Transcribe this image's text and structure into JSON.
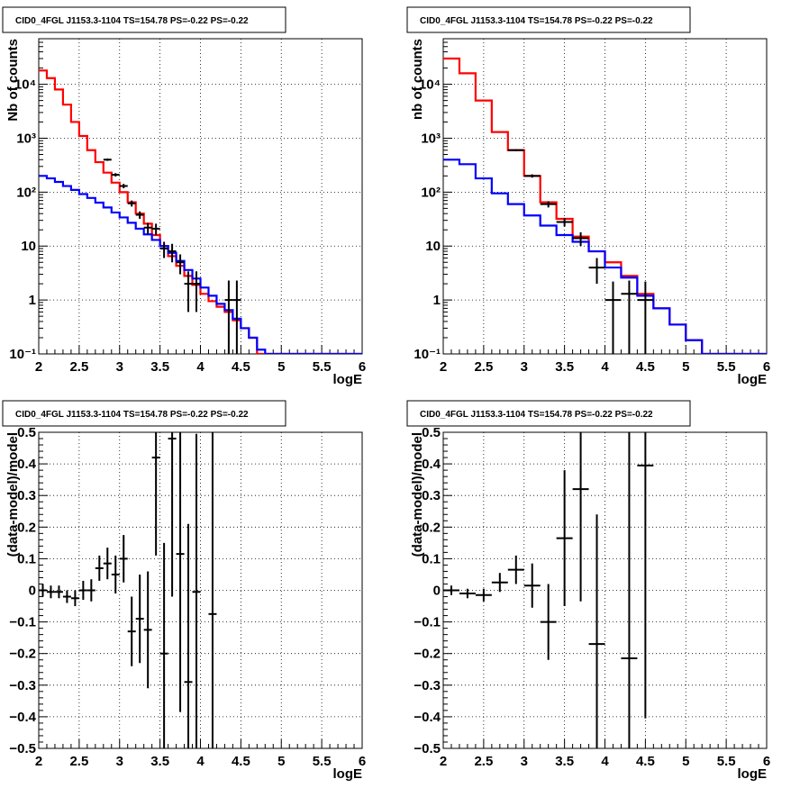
{
  "chart_data": [
    {
      "type": "line",
      "title": "CID0_4FGL J1153.3-1104 TS=154.78 PS=-0.22 PS=-0.22",
      "xlabel": "logE",
      "ylabel": "Nb of counts",
      "xlim": [
        2,
        6
      ],
      "ylim": [
        0.1,
        70000
      ],
      "yscale": "log",
      "grid": true,
      "x_ticks": [
        "2",
        "2.5",
        "3",
        "3.5",
        "4",
        "4.5",
        "5",
        "5.5",
        "6"
      ],
      "y_ticks": [
        "10⁻¹",
        "1",
        "10",
        "10²",
        "10³",
        "10⁴"
      ],
      "bin_edges": [
        2.0,
        2.1,
        2.2,
        2.3,
        2.4,
        2.5,
        2.6,
        2.7,
        2.8,
        2.9,
        3.0,
        3.1,
        3.2,
        3.3,
        3.4,
        3.5,
        3.6,
        3.7,
        3.8,
        3.9,
        4.0,
        4.1,
        4.2,
        4.3,
        4.4,
        4.5,
        4.6,
        4.7,
        4.8,
        4.9,
        5.0,
        5.1,
        5.2,
        5.3,
        5.4,
        5.5,
        5.6,
        5.7,
        5.8,
        5.9,
        6.0
      ],
      "series": [
        {
          "color": "#ff0000",
          "values": [
            18000,
            13000,
            8000,
            4200,
            2000,
            1100,
            600,
            360,
            230,
            150,
            100,
            65,
            40,
            26,
            16,
            10,
            6.5,
            4.3,
            2.8,
            1.9,
            1.3,
            0.95,
            0.75,
            0.6,
            0.42,
            0.3,
            0.2,
            0.1,
            0.1,
            0.1,
            0.1,
            0.1,
            0.1,
            0.1,
            0.1,
            0.1,
            0.1,
            0.1,
            0.1,
            0.1
          ]
        },
        {
          "color": "#0000ff",
          "values": [
            200,
            180,
            155,
            130,
            110,
            92,
            78,
            64,
            52,
            42,
            34,
            27,
            21,
            16.5,
            13,
            10,
            7.5,
            5.3,
            3.6,
            2.5,
            1.7,
            1.2,
            0.85,
            0.65,
            0.45,
            0.3,
            0.2,
            0.12,
            0.1,
            0.1,
            0.1,
            0.1,
            0.1,
            0.1,
            0.1,
            0.1,
            0.1,
            0.1,
            0.1,
            0.1
          ]
        },
        {
          "color": "#000000",
          "points": [
            {
              "x": 2.85,
              "y": 400,
              "err_low": 380,
              "err_high": 420
            },
            {
              "x": 2.95,
              "y": 210,
              "err_low": 195,
              "err_high": 225
            },
            {
              "x": 3.05,
              "y": 130,
              "err_low": 118,
              "err_high": 142
            },
            {
              "x": 3.15,
              "y": 62,
              "err_low": 54,
              "err_high": 70
            },
            {
              "x": 3.25,
              "y": 38,
              "err_low": 32,
              "err_high": 44
            },
            {
              "x": 3.35,
              "y": 22,
              "err_low": 17,
              "err_high": 27
            },
            {
              "x": 3.45,
              "y": 21,
              "err_low": 16,
              "err_high": 26
            },
            {
              "x": 3.55,
              "y": 9,
              "err_low": 6,
              "err_high": 12
            },
            {
              "x": 3.65,
              "y": 8,
              "err_low": 5,
              "err_high": 11
            },
            {
              "x": 3.75,
              "y": 5,
              "err_low": 3,
              "err_high": 7
            },
            {
              "x": 3.85,
              "y": 2,
              "err_low": 0.6,
              "err_high": 3.4
            },
            {
              "x": 3.95,
              "y": 2,
              "err_low": 0.6,
              "err_high": 3.4
            },
            {
              "x": 4.35,
              "y": 1,
              "err_low": 0.1,
              "err_high": 2.3
            },
            {
              "x": 4.45,
              "y": 1,
              "err_low": 0.1,
              "err_high": 2.3
            }
          ]
        }
      ]
    },
    {
      "type": "line",
      "title": "CID0_4FGL J1153.3-1104 TS=154.78 PS=-0.22 PS=-0.22",
      "xlabel": "logE",
      "ylabel": "nb of counts",
      "xlim": [
        2,
        6
      ],
      "ylim": [
        0.1,
        70000
      ],
      "yscale": "log",
      "grid": true,
      "x_ticks": [
        "2",
        "2.5",
        "3",
        "3.5",
        "4",
        "4.5",
        "5",
        "5.5",
        "6"
      ],
      "y_ticks": [
        "10⁻¹",
        "1",
        "10",
        "10²",
        "10³",
        "10⁴"
      ],
      "bin_edges": [
        2.0,
        2.2,
        2.4,
        2.6,
        2.8,
        3.0,
        3.2,
        3.4,
        3.6,
        3.8,
        4.0,
        4.2,
        4.4,
        4.6,
        4.8,
        5.0,
        5.2,
        5.4,
        5.6,
        5.8,
        6.0
      ],
      "series": [
        {
          "color": "#ff0000",
          "values": [
            30000,
            16000,
            5000,
            1300,
            600,
            200,
            65,
            32,
            15,
            8,
            5,
            2.8,
            1.3,
            0.7,
            0.35,
            0.18,
            0.1,
            0.1,
            0.1,
            0.1
          ]
        },
        {
          "color": "#0000ff",
          "values": [
            400,
            330,
            180,
            95,
            60,
            37,
            24,
            16,
            12,
            8,
            4,
            2.6,
            1.2,
            0.7,
            0.35,
            0.18,
            0.1,
            0.1,
            0.1,
            0.1
          ]
        },
        {
          "color": "#000000",
          "points": [
            {
              "x": 2.9,
              "y": 600,
              "err_low": 575,
              "err_high": 625
            },
            {
              "x": 3.1,
              "y": 200,
              "err_low": 186,
              "err_high": 214
            },
            {
              "x": 3.3,
              "y": 60,
              "err_low": 52,
              "err_high": 68
            },
            {
              "x": 3.5,
              "y": 28,
              "err_low": 23,
              "err_high": 33
            },
            {
              "x": 3.7,
              "y": 14,
              "err_low": 10,
              "err_high": 18
            },
            {
              "x": 3.9,
              "y": 4,
              "err_low": 2,
              "err_high": 6
            },
            {
              "x": 4.1,
              "y": 1,
              "err_low": 0.1,
              "err_high": 2.2
            },
            {
              "x": 4.3,
              "y": 1.3,
              "err_low": 0.1,
              "err_high": 2.3
            },
            {
              "x": 4.5,
              "y": 1,
              "err_low": 0.1,
              "err_high": 2.2
            }
          ]
        }
      ]
    },
    {
      "type": "scatter",
      "title": "CID0_4FGL J1153.3-1104 TS=154.78 PS=-0.22 PS=-0.22",
      "xlabel": "logE",
      "ylabel": "(data-model)/model",
      "xlim": [
        2,
        6
      ],
      "ylim": [
        -0.5,
        0.5
      ],
      "grid": true,
      "x_ticks": [
        "2",
        "2.5",
        "3",
        "3.5",
        "4",
        "4.5",
        "5",
        "5.5",
        "6"
      ],
      "y_ticks": [
        "−0.5",
        "−0.4",
        "−0.3",
        "−0.2",
        "−0.1",
        "0",
        "0.1",
        "0.2",
        "0.3",
        "0.4",
        "0.5"
      ],
      "bin_width": 0.1,
      "series": [
        {
          "color": "#000000",
          "points": [
            {
              "x": 2.05,
              "y": 0.0,
              "err": 0.02
            },
            {
              "x": 2.15,
              "y": -0.005,
              "err": 0.02
            },
            {
              "x": 2.25,
              "y": -0.005,
              "err": 0.02
            },
            {
              "x": 2.35,
              "y": -0.02,
              "err": 0.02
            },
            {
              "x": 2.45,
              "y": -0.025,
              "err": 0.025
            },
            {
              "x": 2.55,
              "y": 0.0,
              "err": 0.03
            },
            {
              "x": 2.65,
              "y": 0.0,
              "err": 0.035
            },
            {
              "x": 2.75,
              "y": 0.07,
              "err": 0.04
            },
            {
              "x": 2.85,
              "y": 0.085,
              "err": 0.05
            },
            {
              "x": 2.95,
              "y": 0.05,
              "err": 0.06
            },
            {
              "x": 3.05,
              "y": 0.1,
              "err": 0.075
            },
            {
              "x": 3.15,
              "y": -0.13,
              "err": 0.11
            },
            {
              "x": 3.25,
              "y": -0.09,
              "err": 0.14
            },
            {
              "x": 3.35,
              "y": -0.125,
              "err": 0.185
            },
            {
              "x": 3.45,
              "y": 0.42,
              "err": 0.31
            },
            {
              "x": 3.55,
              "y": -0.2,
              "err": 0.35
            },
            {
              "x": 3.65,
              "y": 0.48,
              "err": 0.5
            },
            {
              "x": 3.75,
              "y": 0.115,
              "err": 0.5
            },
            {
              "x": 3.85,
              "y": -0.29,
              "err": 0.5
            },
            {
              "x": 3.95,
              "y": -0.005,
              "err": 0.5
            },
            {
              "x": 4.15,
              "y": -0.075,
              "err": 0.8
            }
          ]
        }
      ]
    },
    {
      "type": "scatter",
      "title": "CID0_4FGL J1153.3-1104 TS=154.78 PS=-0.22 PS=-0.22",
      "xlabel": "logE",
      "ylabel": "(data-model)/model",
      "xlim": [
        2,
        6
      ],
      "ylim": [
        -0.5,
        0.5
      ],
      "grid": true,
      "x_ticks": [
        "2",
        "2.5",
        "3",
        "3.5",
        "4",
        "4.5",
        "5",
        "5.5",
        "6"
      ],
      "y_ticks": [
        "−0.5",
        "−0.4",
        "−0.3",
        "−0.2",
        "−0.1",
        "0",
        "0.1",
        "0.2",
        "0.3",
        "0.4",
        "0.5"
      ],
      "bin_width": 0.2,
      "series": [
        {
          "color": "#000000",
          "points": [
            {
              "x": 2.1,
              "y": 0.0,
              "err": 0.015
            },
            {
              "x": 2.3,
              "y": -0.01,
              "err": 0.015
            },
            {
              "x": 2.5,
              "y": -0.015,
              "err": 0.02
            },
            {
              "x": 2.7,
              "y": 0.025,
              "err": 0.03
            },
            {
              "x": 2.9,
              "y": 0.065,
              "err": 0.045
            },
            {
              "x": 3.1,
              "y": 0.015,
              "err": 0.07
            },
            {
              "x": 3.3,
              "y": -0.1,
              "err": 0.12
            },
            {
              "x": 3.5,
              "y": 0.165,
              "err": 0.215
            },
            {
              "x": 3.7,
              "y": 0.32,
              "err": 0.355
            },
            {
              "x": 3.9,
              "y": -0.17,
              "err": 0.41
            },
            {
              "x": 4.3,
              "y": -0.215,
              "err": 0.8
            },
            {
              "x": 4.5,
              "y": 0.395,
              "err": 0.8
            }
          ]
        }
      ]
    }
  ]
}
